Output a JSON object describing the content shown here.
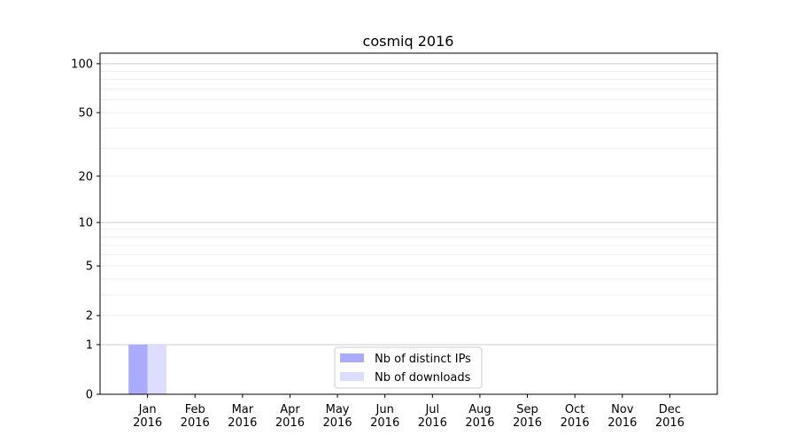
{
  "chart_data": {
    "type": "bar",
    "title": "cosmiq 2016",
    "xlabel": "",
    "ylabel": "",
    "categories": [
      "Jan\n2016",
      "Feb\n2016",
      "Mar\n2016",
      "Apr\n2016",
      "May\n2016",
      "Jun\n2016",
      "Jul\n2016",
      "Aug\n2016",
      "Sep\n2016",
      "Oct\n2016",
      "Nov\n2016",
      "Dec\n2016"
    ],
    "series": [
      {
        "name": "Nb of distinct IPs",
        "color": "#aaaaff",
        "values": [
          1,
          0,
          0,
          0,
          0,
          0,
          0,
          0,
          0,
          0,
          0,
          0
        ]
      },
      {
        "name": "Nb of downloads",
        "color": "#ddddff",
        "values": [
          1,
          0,
          0,
          0,
          0,
          0,
          0,
          0,
          0,
          0,
          0,
          0
        ]
      }
    ],
    "yscale": "log(1+y)",
    "ylim": [
      0,
      116
    ],
    "xlim": [
      -1,
      12
    ],
    "yticks": [
      0,
      1,
      2,
      5,
      10,
      20,
      50,
      100
    ],
    "ytick_labels": [
      "0",
      "1",
      "2",
      "5",
      "10",
      "20",
      "50",
      "100"
    ],
    "grid": true,
    "legend_placement": "lower center"
  }
}
